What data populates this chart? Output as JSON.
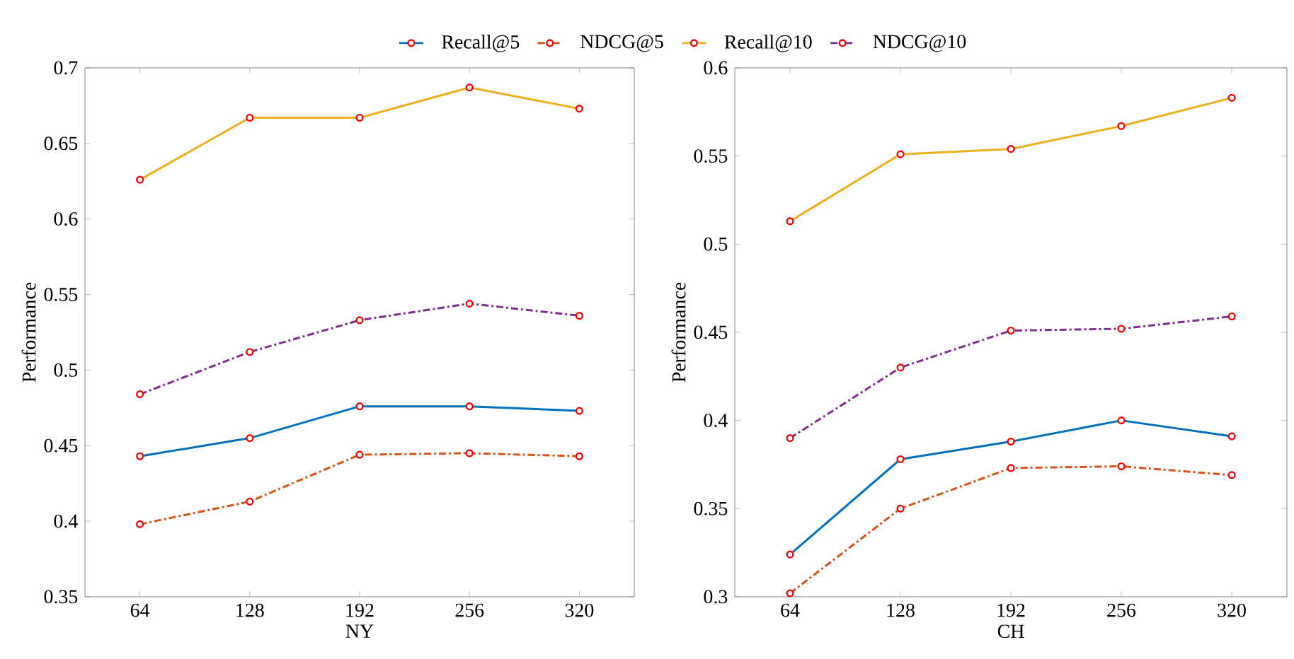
{
  "chart_data": [
    {
      "type": "line",
      "xlabel": "NY",
      "ylabel": "Performance",
      "categories": [
        "64",
        "128",
        "192",
        "256",
        "320"
      ],
      "ylim": [
        0.35,
        0.7
      ],
      "yticks": [
        0.35,
        0.4,
        0.45,
        0.5,
        0.55,
        0.6,
        0.65,
        0.7
      ],
      "marker": "circle",
      "legend": "top",
      "grid": false,
      "series": [
        {
          "name": "Recall@5",
          "color": "#0072bd",
          "line_style": "solid",
          "values": [
            0.443,
            0.455,
            0.476,
            0.476,
            0.473
          ]
        },
        {
          "name": "NDCG@5",
          "color": "#d95319",
          "line_style": "dashdot",
          "values": [
            0.398,
            0.413,
            0.444,
            0.445,
            0.443
          ]
        },
        {
          "name": "Recall@10",
          "color": "#edb120",
          "line_style": "solid",
          "values": [
            0.626,
            0.667,
            0.667,
            0.687,
            0.673
          ]
        },
        {
          "name": "NDCG@10",
          "color": "#7e2f8e",
          "line_style": "dashdot",
          "values": [
            0.484,
            0.512,
            0.533,
            0.544,
            0.536
          ]
        }
      ]
    },
    {
      "type": "line",
      "xlabel": "CH",
      "ylabel": "Performance",
      "categories": [
        "64",
        "128",
        "192",
        "256",
        "320"
      ],
      "ylim": [
        0.3,
        0.6
      ],
      "yticks": [
        0.3,
        0.35,
        0.4,
        0.45,
        0.5,
        0.55,
        0.6
      ],
      "marker": "circle",
      "grid": false,
      "series": [
        {
          "color": "#0072bd",
          "line_style": "solid",
          "values": [
            0.324,
            0.378,
            0.388,
            0.4,
            0.391
          ]
        },
        {
          "color": "#d95319",
          "line_style": "dashdot",
          "values": [
            0.302,
            0.35,
            0.373,
            0.374,
            0.369
          ]
        },
        {
          "color": "#edb120",
          "line_style": "solid",
          "values": [
            0.513,
            0.551,
            0.554,
            0.567,
            0.583
          ]
        },
        {
          "color": "#7e2f8e",
          "line_style": "dashdot",
          "values": [
            0.39,
            0.43,
            0.451,
            0.452,
            0.459
          ]
        }
      ]
    }
  ]
}
